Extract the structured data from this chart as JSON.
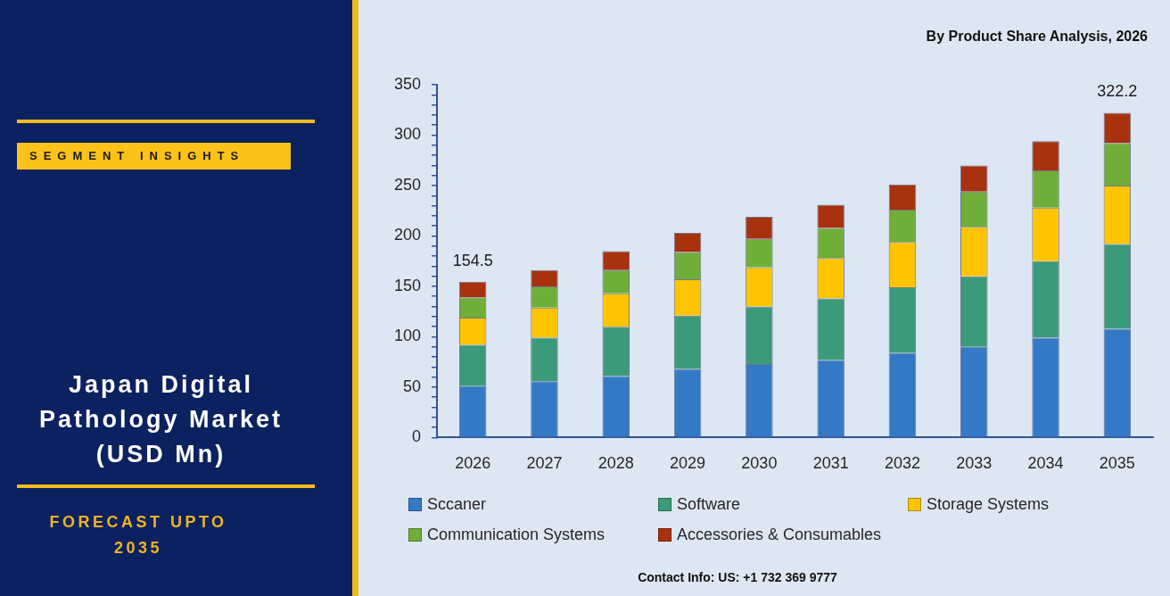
{
  "chart_data": {
    "type": "bar",
    "title": "Japan Digital Pathology Market (USD Mn)",
    "subtitle": "By Product Share Analysis, 2026",
    "categories": [
      "2026",
      "2027",
      "2028",
      "2029",
      "2030",
      "2031",
      "2032",
      "2033",
      "2034",
      "2035"
    ],
    "series": [
      {
        "name": "Sccaner",
        "color": "#3479c6",
        "values": [
          51,
          56,
          61,
          68,
          73,
          77,
          84,
          90,
          99,
          108
        ]
      },
      {
        "name": "Software",
        "color": "#3a9a7a",
        "values": [
          41,
          43,
          49,
          53,
          57,
          61,
          65,
          70,
          76,
          84
        ]
      },
      {
        "name": "Storage Systems",
        "color": "#ffc400",
        "values": [
          27,
          30,
          33,
          36,
          39,
          40,
          45,
          49,
          53,
          58
        ]
      },
      {
        "name": "Communication Systems",
        "color": "#6fae38",
        "values": [
          20,
          21,
          23,
          27,
          28,
          30,
          32,
          35,
          37,
          42
        ]
      },
      {
        "name": "Accessories & Consumables",
        "color": "#a8320e",
        "values": [
          15.5,
          16,
          19,
          19,
          22,
          23,
          25,
          26,
          29,
          30.2
        ]
      }
    ],
    "stacked": true,
    "ylim": [
      0,
      350
    ],
    "yticks": [
      0,
      {
        "value": 10,
        "label": null
      },
      {
        "value": 20,
        "label": null
      },
      {
        "value": 30,
        "label": null
      },
      {
        "value": 40,
        "label": null
      },
      50,
      {
        "value": 60,
        "label": null
      },
      {
        "value": 70,
        "label": null
      },
      {
        "value": 80,
        "label": null
      },
      {
        "value": 90,
        "label": null
      },
      100,
      {
        "value": 110,
        "label": null
      },
      {
        "value": 120,
        "label": null
      },
      {
        "value": 130,
        "label": null
      },
      {
        "value": 140,
        "label": null
      },
      150,
      {
        "value": 160,
        "label": null
      },
      {
        "value": 170,
        "label": null
      },
      {
        "value": 180,
        "label": null
      },
      {
        "value": 190,
        "label": null
      },
      200,
      {
        "value": 210,
        "label": null
      },
      {
        "value": 220,
        "label": null
      },
      {
        "value": 230,
        "label": null
      },
      {
        "value": 240,
        "label": null
      },
      250,
      {
        "value": 260,
        "label": null
      },
      {
        "value": 270,
        "label": null
      },
      {
        "value": 280,
        "label": null
      },
      {
        "value": 290,
        "label": null
      },
      300,
      {
        "value": 310,
        "label": null
      },
      {
        "value": 320,
        "label": null
      },
      {
        "value": 330,
        "label": null
      },
      {
        "value": 340,
        "label": null
      },
      350
    ],
    "grid": false,
    "legend": "bottom",
    "totals": [
      "154.5",
      null,
      null,
      null,
      null,
      null,
      null,
      null,
      null,
      "322.2"
    ],
    "annotations": [
      "SEGMENT INSIGHTS",
      "FORECAST UPTO 2035",
      "Contact Info: US: +1 732 369 9777"
    ]
  }
}
